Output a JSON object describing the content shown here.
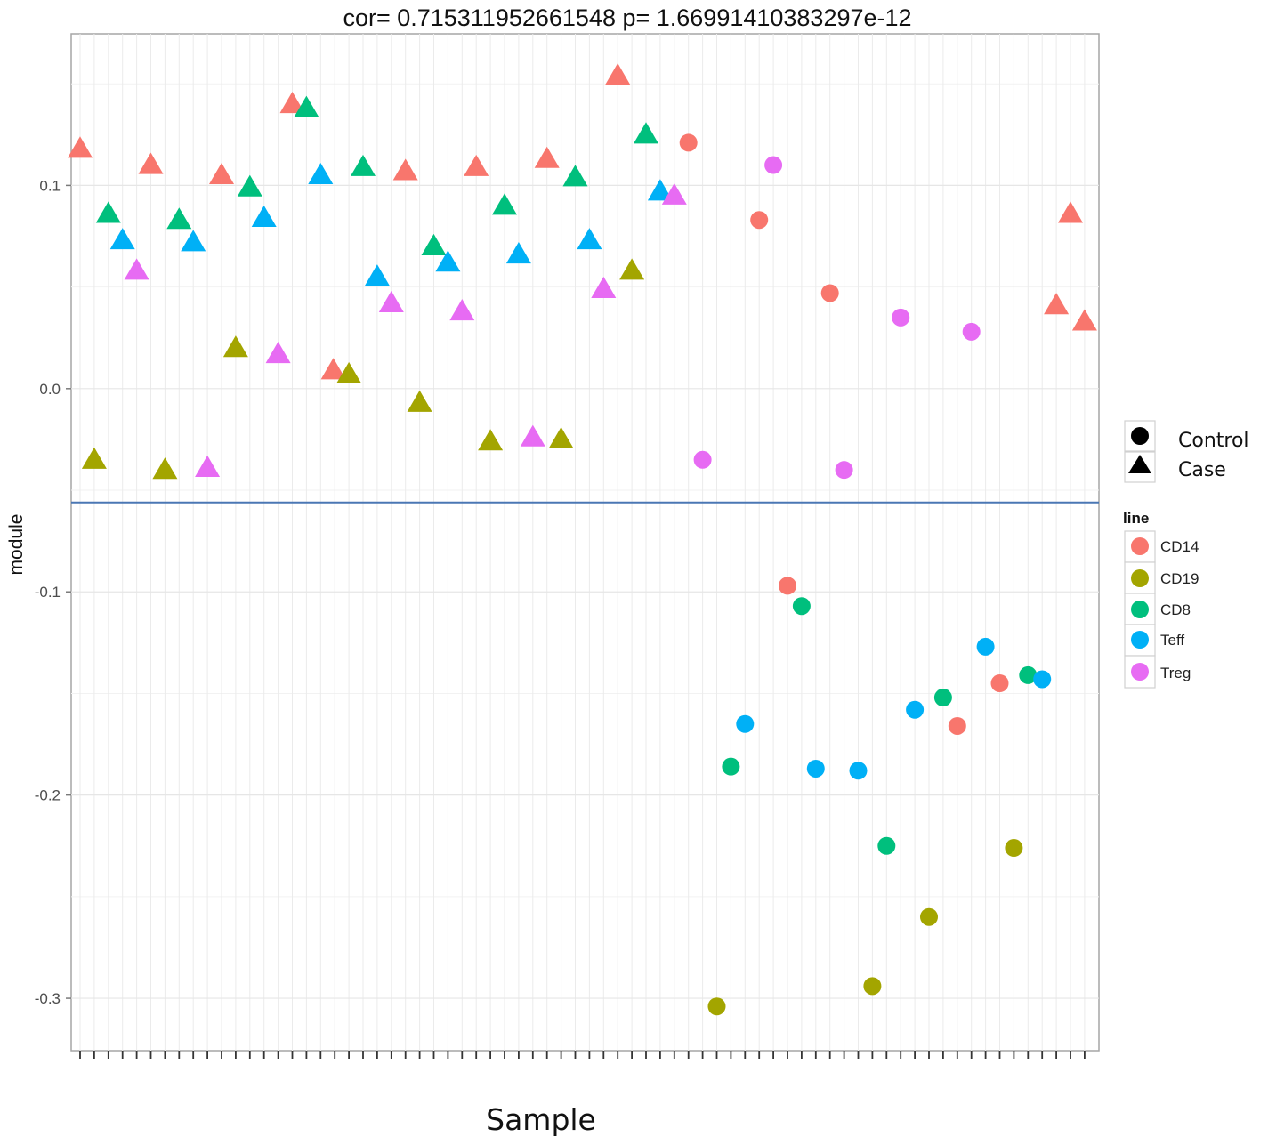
{
  "chart_data": {
    "type": "scatter",
    "title": "cor= 0.715311952661548 p= 1.66991410383297e-12",
    "xlabel": "Sample",
    "ylabel": "module",
    "ylim": [
      -0.3258,
      0.1746
    ],
    "y_ticks": [
      0.1,
      0.0,
      -0.1,
      -0.2,
      -0.3
    ],
    "y_tick_labels": [
      "0.1",
      "0.0",
      "-0.1",
      "-0.2",
      "-0.3"
    ],
    "x_tick_count": 72,
    "hline": -0.056,
    "hline_color": "#4a77b4",
    "grid": true,
    "shape_legend": {
      "items": [
        {
          "label": "Control",
          "shape": "circle"
        },
        {
          "label": "Case",
          "shape": "triangle"
        }
      ]
    },
    "color_legend": {
      "title": "line",
      "items": [
        {
          "label": "CD14",
          "color": "#F8766D"
        },
        {
          "label": "CD19",
          "color": "#A3A500"
        },
        {
          "label": "CD8",
          "color": "#00BF7D"
        },
        {
          "label": "Teff",
          "color": "#00B0F6"
        },
        {
          "label": "Treg",
          "color": "#E76BF3"
        }
      ]
    },
    "colors": {
      "CD14": "#F8766D",
      "CD19": "#A3A500",
      "CD8": "#00BF7D",
      "Teff": "#00B0F6",
      "Treg": "#E76BF3"
    },
    "points": [
      {
        "x": 1,
        "y": 0.118,
        "line": "CD14",
        "group": "Case"
      },
      {
        "x": 2,
        "y": -0.035,
        "line": "CD19",
        "group": "Case"
      },
      {
        "x": 3,
        "y": 0.086,
        "line": "CD8",
        "group": "Case"
      },
      {
        "x": 4,
        "y": 0.073,
        "line": "Teff",
        "group": "Case"
      },
      {
        "x": 5,
        "y": 0.058,
        "line": "Treg",
        "group": "Case"
      },
      {
        "x": 6,
        "y": 0.11,
        "line": "CD14",
        "group": "Case"
      },
      {
        "x": 7,
        "y": -0.04,
        "line": "CD19",
        "group": "Case"
      },
      {
        "x": 8,
        "y": 0.083,
        "line": "CD8",
        "group": "Case"
      },
      {
        "x": 9,
        "y": 0.072,
        "line": "Teff",
        "group": "Case"
      },
      {
        "x": 10,
        "y": -0.039,
        "line": "Treg",
        "group": "Case"
      },
      {
        "x": 11,
        "y": 0.105,
        "line": "CD14",
        "group": "Case"
      },
      {
        "x": 12,
        "y": 0.02,
        "line": "CD19",
        "group": "Case"
      },
      {
        "x": 13,
        "y": 0.099,
        "line": "CD8",
        "group": "Case"
      },
      {
        "x": 14,
        "y": 0.084,
        "line": "Teff",
        "group": "Case"
      },
      {
        "x": 15,
        "y": 0.017,
        "line": "Treg",
        "group": "Case"
      },
      {
        "x": 16,
        "y": 0.14,
        "line": "CD14",
        "group": "Case"
      },
      {
        "x": 17,
        "y": 0.138,
        "line": "CD8",
        "group": "Case"
      },
      {
        "x": 18,
        "y": 0.105,
        "line": "Teff",
        "group": "Case"
      },
      {
        "x": 18.9,
        "y": 0.009,
        "line": "CD14",
        "group": "Case"
      },
      {
        "x": 20,
        "y": 0.007,
        "line": "CD19",
        "group": "Case"
      },
      {
        "x": 21,
        "y": 0.109,
        "line": "CD8",
        "group": "Case"
      },
      {
        "x": 22,
        "y": 0.055,
        "line": "Teff",
        "group": "Case"
      },
      {
        "x": 23,
        "y": 0.042,
        "line": "Treg",
        "group": "Case"
      },
      {
        "x": 24,
        "y": 0.107,
        "line": "CD14",
        "group": "Case"
      },
      {
        "x": 25,
        "y": -0.007,
        "line": "CD19",
        "group": "Case"
      },
      {
        "x": 26,
        "y": 0.07,
        "line": "CD8",
        "group": "Case"
      },
      {
        "x": 27,
        "y": 0.062,
        "line": "Teff",
        "group": "Case"
      },
      {
        "x": 28,
        "y": 0.038,
        "line": "Treg",
        "group": "Case"
      },
      {
        "x": 29,
        "y": 0.109,
        "line": "CD14",
        "group": "Case"
      },
      {
        "x": 30,
        "y": -0.026,
        "line": "CD19",
        "group": "Case"
      },
      {
        "x": 31,
        "y": 0.09,
        "line": "CD8",
        "group": "Case"
      },
      {
        "x": 32,
        "y": 0.066,
        "line": "Teff",
        "group": "Case"
      },
      {
        "x": 33,
        "y": -0.024,
        "line": "Treg",
        "group": "Case"
      },
      {
        "x": 34,
        "y": 0.113,
        "line": "CD14",
        "group": "Case"
      },
      {
        "x": 35,
        "y": -0.025,
        "line": "CD19",
        "group": "Case"
      },
      {
        "x": 36,
        "y": 0.104,
        "line": "CD8",
        "group": "Case"
      },
      {
        "x": 37,
        "y": 0.073,
        "line": "Teff",
        "group": "Case"
      },
      {
        "x": 38,
        "y": 0.049,
        "line": "Treg",
        "group": "Case"
      },
      {
        "x": 39,
        "y": 0.154,
        "line": "CD14",
        "group": "Case"
      },
      {
        "x": 40,
        "y": 0.058,
        "line": "CD19",
        "group": "Case"
      },
      {
        "x": 41,
        "y": 0.125,
        "line": "CD8",
        "group": "Case"
      },
      {
        "x": 42,
        "y": 0.097,
        "line": "Teff",
        "group": "Case"
      },
      {
        "x": 43,
        "y": 0.095,
        "line": "Treg",
        "group": "Case"
      },
      {
        "x": 44,
        "y": 0.121,
        "line": "CD14",
        "group": "Control"
      },
      {
        "x": 45,
        "y": -0.035,
        "line": "Treg",
        "group": "Control"
      },
      {
        "x": 46,
        "y": -0.304,
        "line": "CD19",
        "group": "Control"
      },
      {
        "x": 47,
        "y": -0.186,
        "line": "CD8",
        "group": "Control"
      },
      {
        "x": 48,
        "y": -0.165,
        "line": "Teff",
        "group": "Control"
      },
      {
        "x": 49,
        "y": 0.083,
        "line": "CD14",
        "group": "Control"
      },
      {
        "x": 50,
        "y": 0.11,
        "line": "Treg",
        "group": "Control"
      },
      {
        "x": 51,
        "y": -0.097,
        "line": "CD14",
        "group": "Control"
      },
      {
        "x": 52,
        "y": -0.107,
        "line": "CD8",
        "group": "Control"
      },
      {
        "x": 53,
        "y": -0.187,
        "line": "Teff",
        "group": "Control"
      },
      {
        "x": 54,
        "y": 0.047,
        "line": "CD14",
        "group": "Control"
      },
      {
        "x": 55,
        "y": -0.04,
        "line": "Treg",
        "group": "Control"
      },
      {
        "x": 56,
        "y": -0.188,
        "line": "Teff",
        "group": "Control"
      },
      {
        "x": 57,
        "y": -0.294,
        "line": "CD19",
        "group": "Control"
      },
      {
        "x": 58,
        "y": -0.225,
        "line": "CD8",
        "group": "Control"
      },
      {
        "x": 59,
        "y": 0.035,
        "line": "Treg",
        "group": "Control"
      },
      {
        "x": 60,
        "y": -0.158,
        "line": "Teff",
        "group": "Control"
      },
      {
        "x": 61,
        "y": -0.26,
        "line": "CD19",
        "group": "Control"
      },
      {
        "x": 62,
        "y": -0.152,
        "line": "CD8",
        "group": "Control"
      },
      {
        "x": 63,
        "y": -0.166,
        "line": "CD14",
        "group": "Control"
      },
      {
        "x": 64,
        "y": 0.028,
        "line": "Treg",
        "group": "Control"
      },
      {
        "x": 65,
        "y": -0.127,
        "line": "Teff",
        "group": "Control"
      },
      {
        "x": 66,
        "y": -0.145,
        "line": "CD14",
        "group": "Control"
      },
      {
        "x": 67,
        "y": -0.226,
        "line": "CD19",
        "group": "Control"
      },
      {
        "x": 68,
        "y": -0.141,
        "line": "CD8",
        "group": "Control"
      },
      {
        "x": 69,
        "y": -0.143,
        "line": "Teff",
        "group": "Control"
      },
      {
        "x": 70,
        "y": 0.041,
        "line": "CD14",
        "group": "Case"
      },
      {
        "x": 71,
        "y": 0.086,
        "line": "CD14",
        "group": "Case"
      },
      {
        "x": 72,
        "y": 0.033,
        "line": "CD14",
        "group": "Case"
      }
    ]
  }
}
